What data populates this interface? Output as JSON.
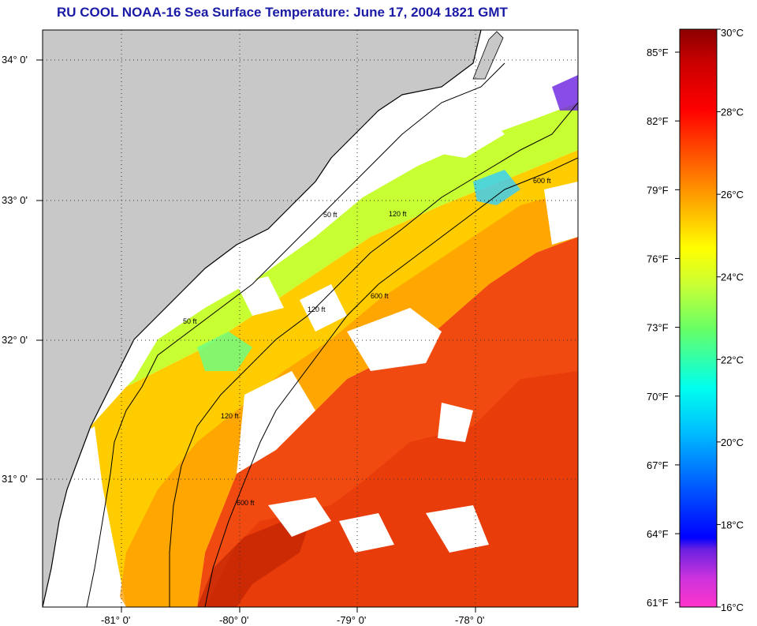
{
  "title": "RU COOL  NOAA-16  Sea Surface Temperature:  June 17, 2004 1821 GMT",
  "map": {
    "lon_ticks": [
      "-81° 0'",
      "-80° 0'",
      "-79° 0'",
      "-78° 0'"
    ],
    "lat_ticks": [
      "34° 0'",
      "33° 0'",
      "32° 0'",
      "31° 0'"
    ],
    "lon_range": [
      -81.66,
      -77.13
    ],
    "lat_range": [
      30.08,
      34.24
    ],
    "isobaths": [
      "50 ft",
      "120 ft",
      "600 ft"
    ],
    "colors": {
      "land": "#c8c8c8",
      "cloud": "#ffffff",
      "coast": "#000000"
    }
  },
  "colorbar": {
    "fahrenheit_labels": [
      "85°F",
      "82°F",
      "79°F",
      "76°F",
      "73°F",
      "70°F",
      "67°F",
      "64°F",
      "61°F"
    ],
    "celsius_labels": [
      "30°C",
      "28°C",
      "26°C",
      "24°C",
      "22°C",
      "20°C",
      "18°C",
      "16°C"
    ],
    "celsius_range": [
      16,
      30
    ],
    "colors": [
      "#ff33cc",
      "#6a20e0",
      "#0000ff",
      "#0099ff",
      "#00ffff",
      "#66ff66",
      "#ccff33",
      "#ffff00",
      "#ffaa00",
      "#ff5500",
      "#ff0000",
      "#cc0000",
      "#8b0000"
    ]
  }
}
